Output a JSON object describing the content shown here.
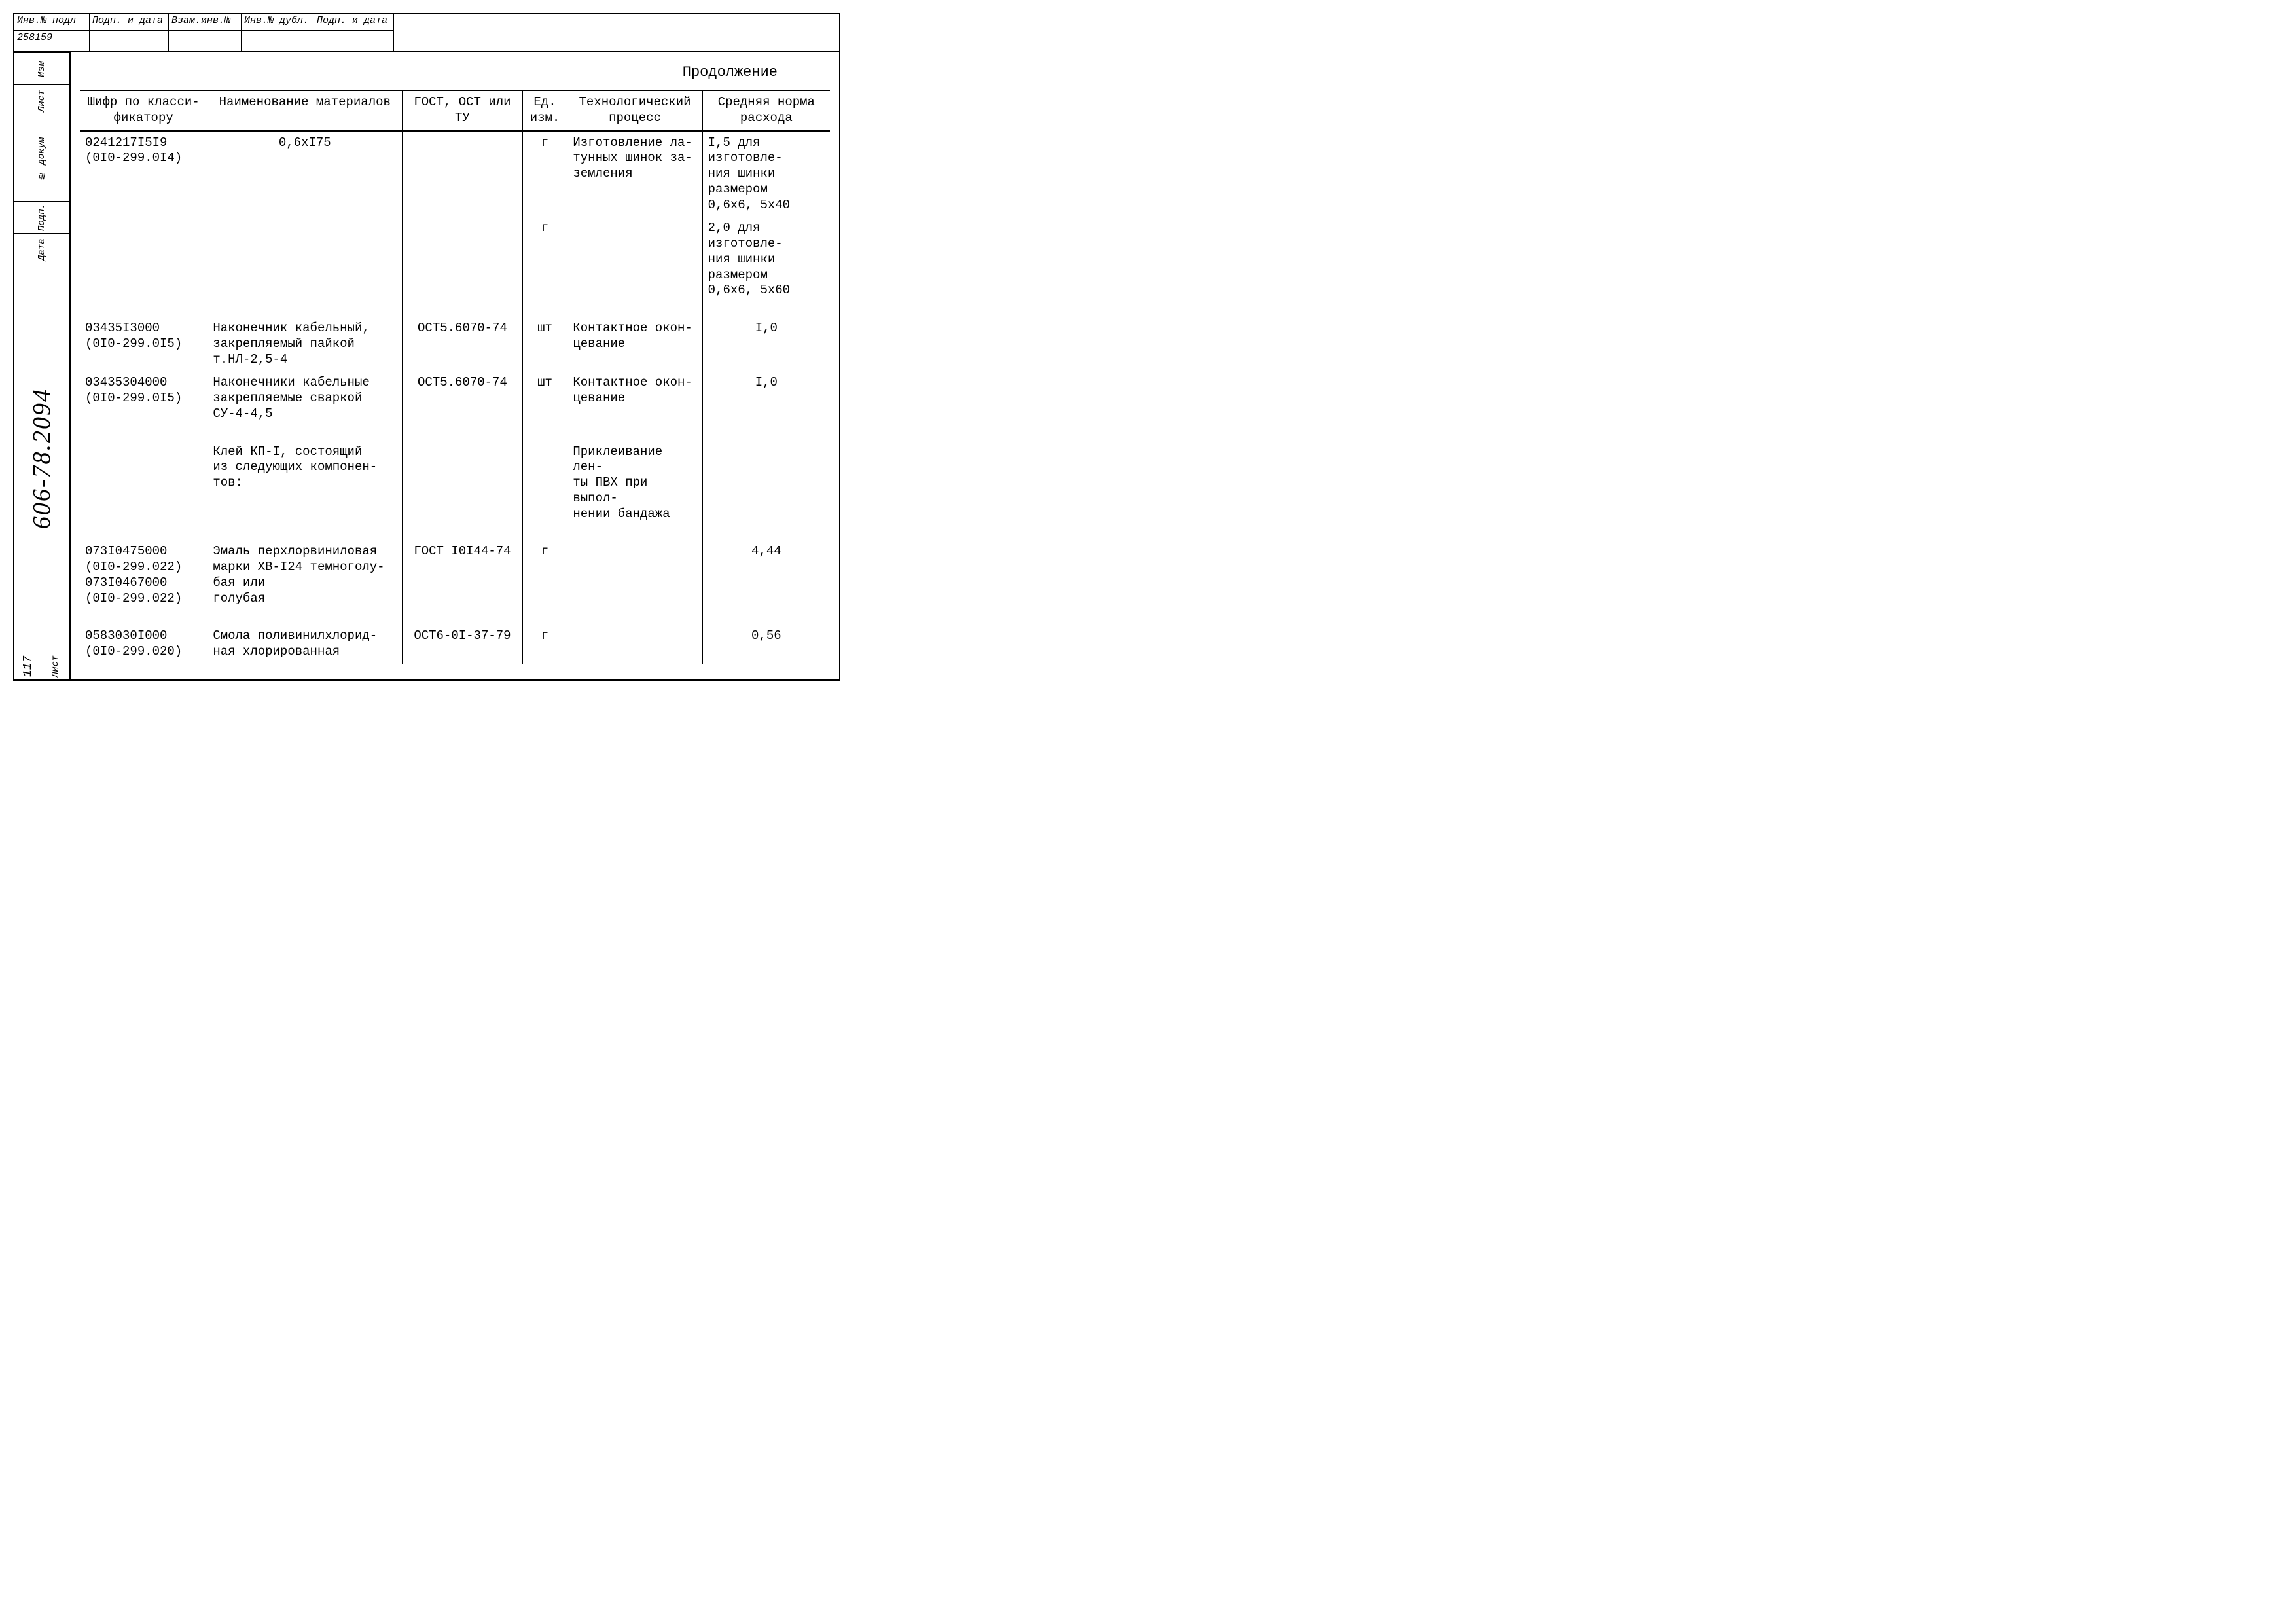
{
  "topStrip": {
    "cells": [
      {
        "label": "Инв.№ подл",
        "value": "258159"
      },
      {
        "label": "Подп. и дата",
        "value": ""
      },
      {
        "label": "Взам.инв.№",
        "value": ""
      },
      {
        "label": "Инв.№ дубл.",
        "value": ""
      },
      {
        "label": "Подп. и дата",
        "value": ""
      }
    ]
  },
  "sidebar": {
    "labels": [
      "Изм",
      "Лист",
      "№ докум",
      "Подп.",
      "Дата"
    ],
    "documentNumber": "606-78.2094",
    "sheetLabel": "Лист",
    "sheetNumber": "117"
  },
  "content": {
    "continuation": "Продолжение",
    "columns": [
      "Шифр по класси-\nфикатору",
      "Наименование\nматериалов",
      "ГОСТ, ОСТ\nили ТУ",
      "Ед.\nизм.",
      "Технологический\nпроцесс",
      "Средняя норма\nрасхода"
    ],
    "rows": [
      {
        "code": "0241217I5I9\n(0I0-299.0I4)",
        "name": "0,6хI75",
        "nameCenter": true,
        "gost": "",
        "unit": "г",
        "process": "Изготовление ла-\nтунных шинок за-\nземления",
        "norm": "I,5 для изготовле-\nния шинки размером\n0,6х6,  5х40"
      },
      {
        "code": "",
        "name": "",
        "gost": "",
        "unit": "г",
        "process": "",
        "norm": "2,0 для изготовле-\nния шинки размером\n0,6х6,  5х60"
      },
      {
        "code": "03435I3000\n(0I0-299.0I5)",
        "name": "Наконечник кабельный,\nзакрепляемый пайкой\nт.НЛ-2,5-4",
        "gost": "ОСТ5.6070-74",
        "unit": "шт",
        "process": "Контактное окон-\nцевание",
        "norm": "I,0"
      },
      {
        "code": "03435304000\n(0I0-299.0I5)",
        "name": "Наконечники кабельные\nзакрепляемые сваркой\nСУ-4-4,5",
        "gost": "ОСТ5.6070-74",
        "unit": "шт",
        "process": "Контактное окон-\nцевание",
        "norm": "I,0"
      },
      {
        "code": "",
        "name": "Клей КП-I, состоящий\nиз следующих компонен-\nтов:",
        "gost": "",
        "unit": "",
        "process": "Приклеивание лен-\nты ПВХ при выпол-\nнении бандажа",
        "norm": ""
      },
      {
        "code": "073I0475000\n(0I0-299.022)\n\n073I0467000\n(0I0-299.022)",
        "name": "Эмаль перхлорвиниловая\nмарки ХВ-I24 темноголу-\nбая      или\nголубая",
        "gost": "ГОСТ I0I44-74",
        "unit": "г",
        "process": "",
        "norm": "4,44"
      },
      {
        "code": "0583030I000\n(0I0-299.020)",
        "name": "Смола поливинилхлорид-\nная хлорированная",
        "gost": "ОСТ6-0I-37-79",
        "unit": "г",
        "process": "",
        "norm": "0,56"
      }
    ]
  },
  "style": {
    "background": "#ffffff",
    "text": "#000000",
    "border": "#000000",
    "fontsize_body": 19,
    "fontsize_header": 22,
    "fontsize_docnum": 38
  }
}
